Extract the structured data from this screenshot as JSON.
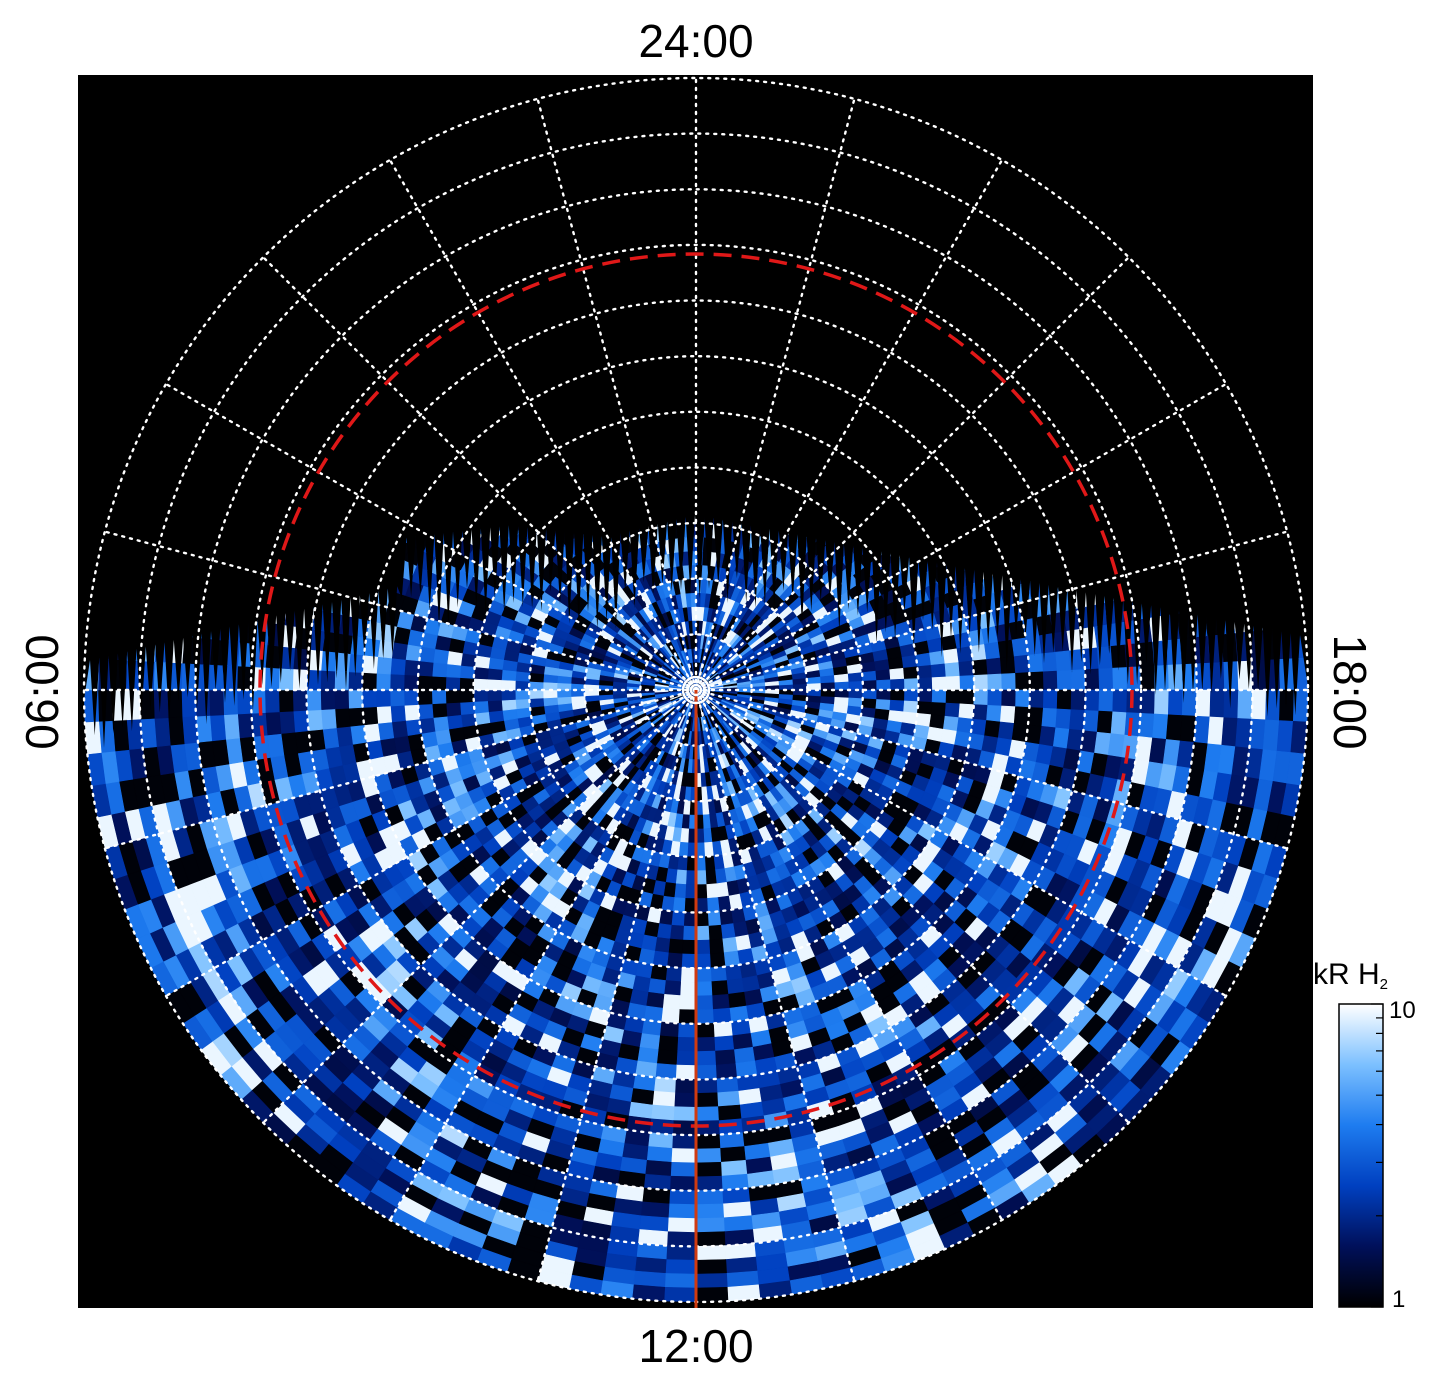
{
  "chart_data": {
    "type": "heatmap",
    "projection": "polar",
    "title": "",
    "local_time_labels": {
      "top": "24:00",
      "bottom": "12:00",
      "left": "06:00",
      "right": "18:00"
    },
    "colorbar": {
      "label": "kR H",
      "label_subscript": "2",
      "scale": "log",
      "min": 1,
      "max": 10,
      "tick_labels": [
        "10",
        "1"
      ],
      "colors": [
        "#000000",
        "#00105a",
        "#0040c0",
        "#1e7cf0",
        "#7cc0ff",
        "#ffffff"
      ]
    },
    "grid": {
      "style": "dotted",
      "color": "#ffffff",
      "colatitude_rings": 11,
      "meridians_deg": [
        0,
        15,
        30,
        45,
        60,
        75,
        90,
        105,
        120,
        135,
        150,
        165,
        180,
        195,
        210,
        225,
        240,
        255,
        270,
        285,
        300,
        315,
        330,
        345
      ]
    },
    "reference_ring": {
      "style": "dashed",
      "color": "#e01818"
    },
    "highlight_meridian": {
      "local_time": "12:00",
      "color": "#d03a10"
    },
    "pole_marker": {
      "color": "#ffffff"
    },
    "background": "#000000",
    "intensity_range_kR": [
      1,
      10
    ],
    "coverage": "dayside and dawn/dusk sectors; nightside sector empty"
  }
}
